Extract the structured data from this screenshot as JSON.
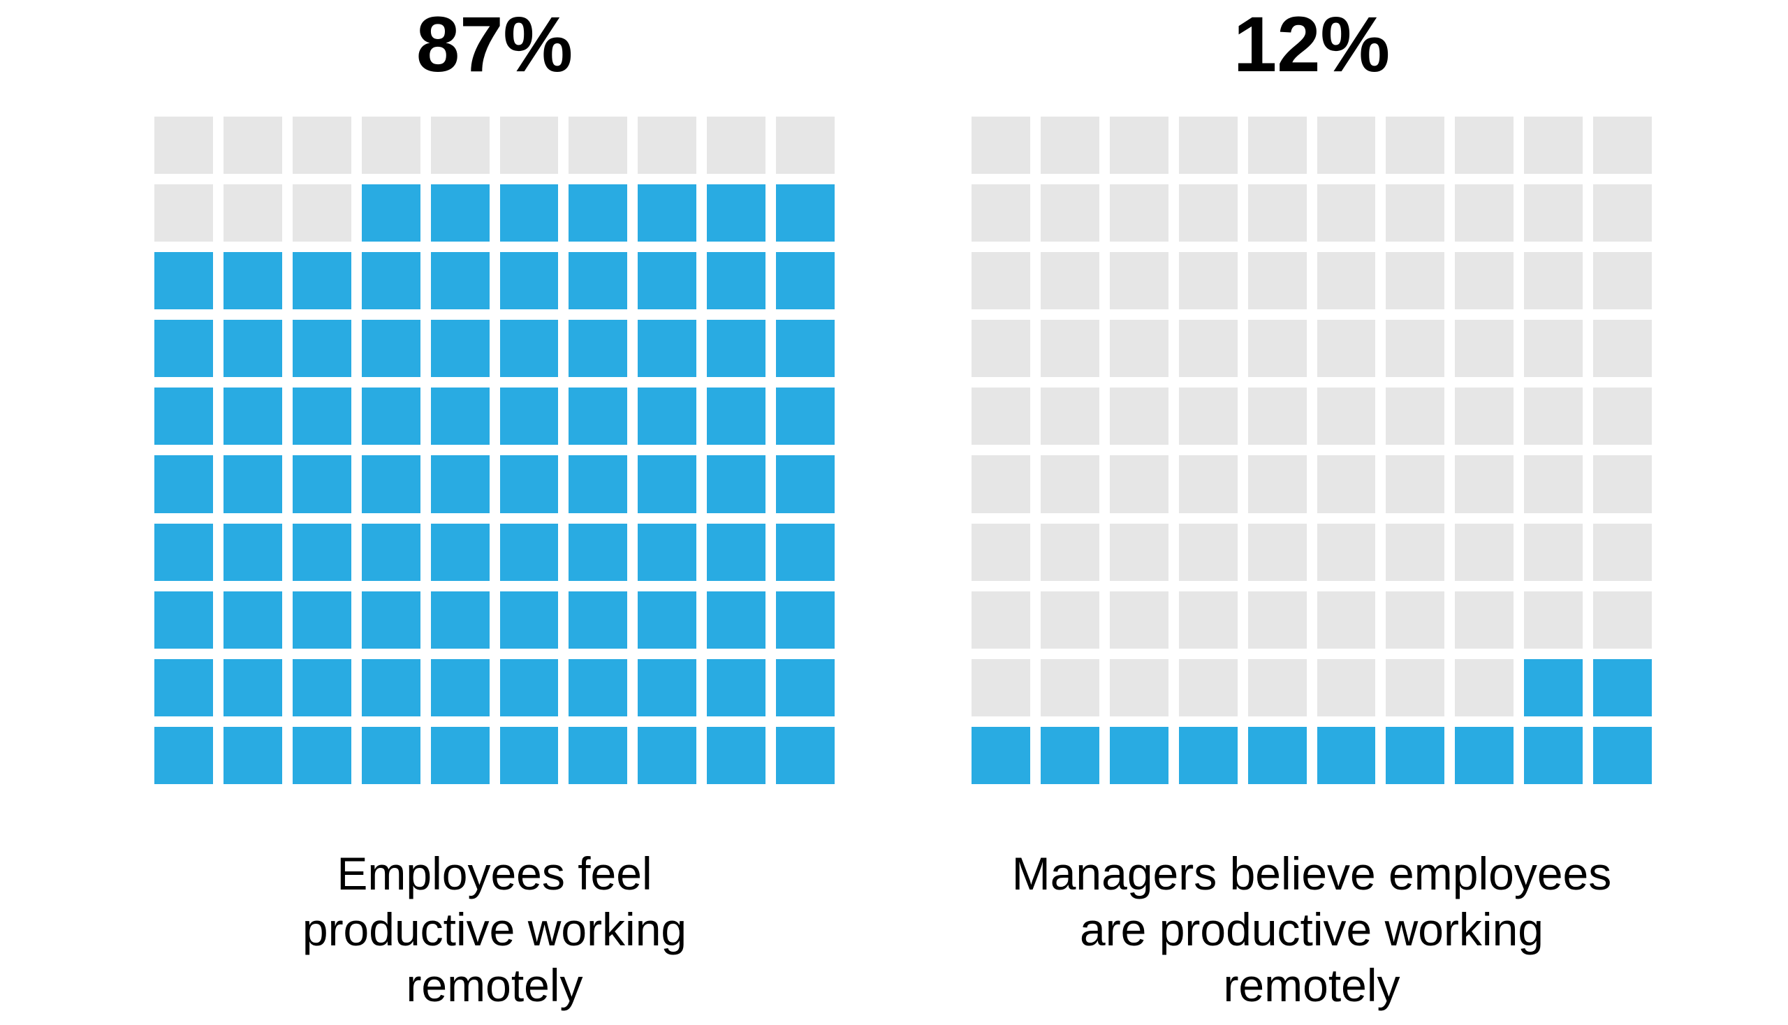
{
  "page": {
    "background": "#FFFFFF",
    "text_color": "#000000"
  },
  "chart_data": [
    {
      "type": "waffle",
      "title": "87%",
      "value": 87,
      "total": 100,
      "rows": 10,
      "cols": 10,
      "fill_direction": "bottom-up",
      "partial_row_alignment": "right",
      "filled_color": "#29ABE2",
      "empty_color": "#E6E6E6",
      "caption": "Employees feel productive working remotely",
      "caption_lines": [
        "Employees feel",
        "productive working",
        "remotely"
      ]
    },
    {
      "type": "waffle",
      "title": "12%",
      "value": 12,
      "total": 100,
      "rows": 10,
      "cols": 10,
      "fill_direction": "bottom-up",
      "partial_row_alignment": "right",
      "filled_color": "#29ABE2",
      "empty_color": "#E6E6E6",
      "caption": "Managers believe employees are productive working remotely",
      "caption_lines": [
        "Managers believe employees",
        "are productive working",
        "remotely"
      ]
    }
  ]
}
